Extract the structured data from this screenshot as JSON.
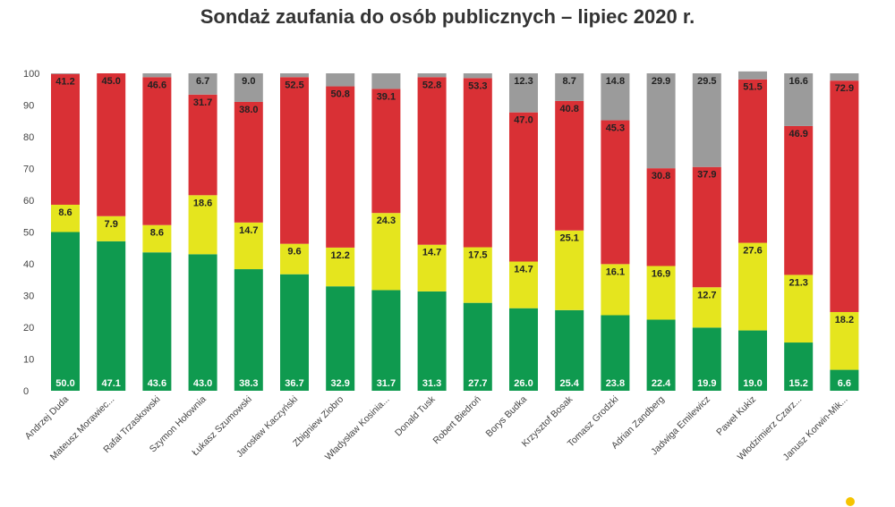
{
  "chart_data": {
    "type": "bar",
    "stacked": true,
    "title": "Sondaż zaufania do osób publicznych – lipiec 2020 r.",
    "xlabel": "",
    "ylabel": "",
    "ylim": [
      0,
      100
    ],
    "yticks": [
      "0",
      "10",
      "20",
      "30",
      "40",
      "50",
      "60",
      "70",
      "80",
      "90",
      "100"
    ],
    "grid": false,
    "legend": "none",
    "categories": [
      "Andrzej Duda",
      "Mateusz Morawiec...",
      "Rafał Trzaskowski",
      "Szymon Hołownia",
      "Łukasz Szumowski",
      "Jarosław Kaczyński",
      "Zbigniew Ziobro",
      "Władysław Kosinia...",
      "Donald Tusk",
      "Robert Biedroń",
      "Borys Budka",
      "Krzysztof Bosak",
      "Tomasz Grodzki",
      "Adrian Zandberg",
      "Jadwiga Emilewicz",
      "Paweł Kukiz",
      "Włodzimierz Czarz...",
      "Janusz Korwin-Mik..."
    ],
    "series": [
      {
        "color": "#0f9a4f",
        "values": [
          50.0,
          47.1,
          43.6,
          43.0,
          38.3,
          36.7,
          32.9,
          31.7,
          31.3,
          27.7,
          26.0,
          25.4,
          23.8,
          22.4,
          19.9,
          19.0,
          15.2,
          6.6
        ]
      },
      {
        "color": "#e5e51e",
        "values": [
          8.6,
          7.9,
          8.6,
          18.6,
          14.7,
          9.6,
          12.2,
          24.3,
          14.7,
          17.5,
          14.7,
          25.1,
          16.1,
          16.9,
          12.7,
          27.6,
          21.3,
          18.2
        ]
      },
      {
        "color": "#d93035",
        "values": [
          41.2,
          45.0,
          46.6,
          31.7,
          38.0,
          52.5,
          50.8,
          39.1,
          52.8,
          53.3,
          47.0,
          40.8,
          45.3,
          30.8,
          37.9,
          51.5,
          46.9,
          72.9
        ]
      },
      {
        "color": "#9b9b9b",
        "values": [
          0.2,
          0.0,
          1.2,
          6.7,
          9.0,
          1.2,
          4.1,
          4.9,
          1.2,
          1.5,
          12.3,
          8.7,
          14.8,
          29.9,
          29.5,
          2.5,
          16.6,
          2.3
        ]
      }
    ],
    "gray_labels": [
      "",
      "",
      "",
      "6.7",
      "9.0",
      "",
      "",
      "",
      "",
      "",
      "12.3",
      "8.7",
      "14.8",
      "29.9",
      "29.5",
      "",
      "16.6",
      ""
    ]
  },
  "colors": {
    "title": "#333333",
    "axis_text": "#444444",
    "green_label_text": "#ffffff",
    "other_label_text": "#222222",
    "logo": "#f5c400"
  }
}
